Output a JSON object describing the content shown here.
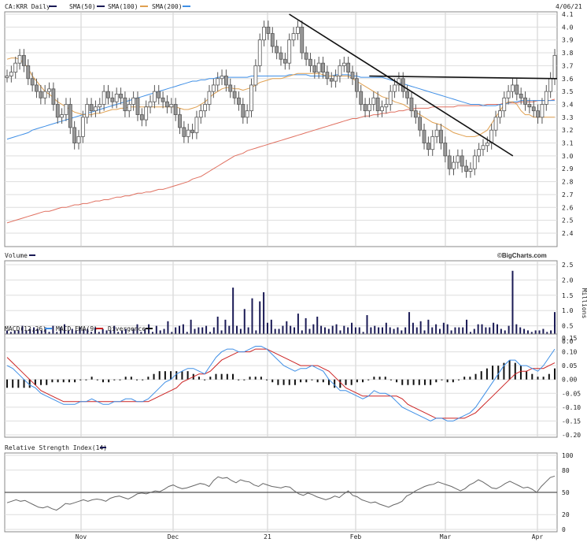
{
  "header": {
    "ticker_label": "CA:KRR Daily",
    "sma50_label": "SMA(50)",
    "sma100_label": "SMA(100)",
    "sma200_label": "SMA(200)",
    "date_label": "4/06/21"
  },
  "volume_panel": {
    "title": "Volume",
    "brand": "©BigCharts.com",
    "unit_label": "Millions"
  },
  "macd_panel": {
    "title_macd": "MACD(12,26)",
    "title_ema": "MACD EMA(9)",
    "title_div": "Divergence"
  },
  "rsi_panel": {
    "title": "Relative Strength Index(14)"
  },
  "colors": {
    "sma50": "#1a1a55",
    "sma100": "#e0a050",
    "sma200": "#3f8fe6",
    "sma200_long": "#e07060",
    "candle": "#999999",
    "macd": "#3f8fe6",
    "ema": "#cc2222",
    "volume": "#1a1a55"
  },
  "chart_data": [
    {
      "type": "candlestick",
      "ylim": [
        2.4,
        4.1
      ],
      "yticks": [
        "4.1",
        "4.0",
        "3.9",
        "3.8",
        "3.7",
        "3.6",
        "3.5",
        "3.4",
        "3.3",
        "3.2",
        "3.1",
        "3.0",
        "2.9",
        "2.8",
        "2.7",
        "2.6",
        "2.5",
        "2.4"
      ],
      "xticks": [
        "Nov",
        "Dec",
        "21",
        "Feb",
        "Mar",
        "Apr"
      ],
      "close": [
        3.62,
        3.65,
        3.72,
        3.78,
        3.7,
        3.6,
        3.55,
        3.5,
        3.45,
        3.5,
        3.52,
        3.4,
        3.3,
        3.32,
        3.4,
        3.22,
        3.1,
        3.15,
        3.3,
        3.4,
        3.35,
        3.38,
        3.4,
        3.5,
        3.45,
        3.42,
        3.48,
        3.45,
        3.35,
        3.4,
        3.45,
        3.32,
        3.28,
        3.38,
        3.42,
        3.5,
        3.45,
        3.42,
        3.38,
        3.4,
        3.32,
        3.22,
        3.15,
        3.2,
        3.18,
        3.3,
        3.35,
        3.4,
        3.5,
        3.55,
        3.6,
        3.62,
        3.55,
        3.5,
        3.45,
        3.4,
        3.3,
        3.35,
        3.55,
        3.7,
        3.9,
        4.0,
        3.95,
        3.85,
        3.8,
        3.75,
        3.72,
        3.9,
        3.95,
        4.0,
        3.8,
        3.75,
        3.7,
        3.65,
        3.72,
        3.65,
        3.6,
        3.58,
        3.62,
        3.7,
        3.72,
        3.65,
        3.6,
        3.5,
        3.4,
        3.35,
        3.4,
        3.45,
        3.35,
        3.38,
        3.4,
        3.5,
        3.55,
        3.6,
        3.5,
        3.45,
        3.35,
        3.3,
        3.2,
        3.1,
        3.05,
        3.15,
        3.2,
        3.1,
        3.0,
        2.9,
        2.95,
        3.0,
        2.92,
        2.88,
        2.9,
        3.0,
        3.05,
        3.08,
        3.1,
        3.2,
        3.3,
        3.35,
        3.45,
        3.5,
        3.55,
        3.48,
        3.45,
        3.4,
        3.38,
        3.35,
        3.3,
        3.4,
        3.5,
        3.6,
        3.78
      ],
      "sma50": [
        3.75,
        3.76,
        3.76,
        3.75,
        3.72,
        3.68,
        3.62,
        3.58,
        3.54,
        3.5,
        3.48,
        3.45,
        3.42,
        3.4,
        3.38,
        3.36,
        3.34,
        3.33,
        3.32,
        3.32,
        3.32,
        3.33,
        3.33,
        3.34,
        3.35,
        3.36,
        3.36,
        3.37,
        3.37,
        3.38,
        3.38,
        3.38,
        3.38,
        3.38,
        3.38,
        3.38,
        3.38,
        3.38,
        3.38,
        3.38,
        3.38,
        3.37,
        3.36,
        3.36,
        3.37,
        3.38,
        3.4,
        3.42,
        3.45,
        3.48,
        3.5,
        3.52,
        3.53,
        3.53,
        3.52,
        3.52,
        3.51,
        3.52,
        3.53,
        3.55,
        3.57,
        3.58,
        3.59,
        3.6,
        3.6,
        3.6,
        3.61,
        3.62,
        3.63,
        3.64,
        3.64,
        3.64,
        3.64,
        3.64,
        3.64,
        3.63,
        3.62,
        3.62,
        3.62,
        3.62,
        3.62,
        3.62,
        3.6,
        3.58,
        3.56,
        3.54,
        3.52,
        3.5,
        3.48,
        3.46,
        3.45,
        3.44,
        3.42,
        3.41,
        3.4,
        3.38,
        3.36,
        3.34,
        3.32,
        3.3,
        3.28,
        3.26,
        3.25,
        3.24,
        3.22,
        3.2,
        3.18,
        3.17,
        3.16,
        3.15,
        3.15,
        3.15,
        3.16,
        3.18,
        3.2,
        3.25,
        3.3,
        3.35,
        3.4,
        3.42,
        3.42,
        3.4,
        3.35,
        3.32,
        3.32,
        3.3,
        3.3,
        3.3,
        3.3,
        3.3,
        3.3
      ],
      "sma200_line": [
        3.13,
        3.14,
        3.15,
        3.16,
        3.17,
        3.18,
        3.2,
        3.21,
        3.22,
        3.23,
        3.24,
        3.25,
        3.26,
        3.27,
        3.28,
        3.29,
        3.3,
        3.31,
        3.32,
        3.33,
        3.34,
        3.35,
        3.36,
        3.37,
        3.38,
        3.39,
        3.4,
        3.41,
        3.42,
        3.43,
        3.44,
        3.45,
        3.46,
        3.47,
        3.48,
        3.49,
        3.5,
        3.51,
        3.52,
        3.53,
        3.54,
        3.55,
        3.56,
        3.57,
        3.58,
        3.58,
        3.59,
        3.59,
        3.6,
        3.6,
        3.61,
        3.61,
        3.61,
        3.61,
        3.61,
        3.61,
        3.61,
        3.61,
        3.62,
        3.62,
        3.62,
        3.62,
        3.62,
        3.62,
        3.62,
        3.62,
        3.62,
        3.63,
        3.63,
        3.63,
        3.63,
        3.63,
        3.62,
        3.62,
        3.62,
        3.62,
        3.62,
        3.62,
        3.63,
        3.63,
        3.63,
        3.63,
        3.62,
        3.62,
        3.61,
        3.61,
        3.61,
        3.61,
        3.61,
        3.61,
        3.6,
        3.59,
        3.58,
        3.57,
        3.56,
        3.55,
        3.54,
        3.53,
        3.52,
        3.51,
        3.5,
        3.49,
        3.48,
        3.47,
        3.46,
        3.45,
        3.44,
        3.43,
        3.42,
        3.41,
        3.4,
        3.4,
        3.4,
        3.39,
        3.39,
        3.39,
        3.39,
        3.4,
        3.4,
        3.41,
        3.42,
        3.42,
        3.43,
        3.43,
        3.43,
        3.43,
        3.43,
        3.43,
        3.43,
        3.43,
        3.43
      ],
      "sma_long_line": [
        2.48,
        2.49,
        2.5,
        2.51,
        2.52,
        2.53,
        2.54,
        2.55,
        2.56,
        2.57,
        2.57,
        2.58,
        2.59,
        2.6,
        2.6,
        2.61,
        2.62,
        2.62,
        2.63,
        2.63,
        2.64,
        2.65,
        2.65,
        2.66,
        2.66,
        2.67,
        2.68,
        2.68,
        2.69,
        2.69,
        2.7,
        2.71,
        2.71,
        2.72,
        2.72,
        2.73,
        2.74,
        2.74,
        2.75,
        2.76,
        2.77,
        2.78,
        2.79,
        2.8,
        2.82,
        2.83,
        2.84,
        2.86,
        2.88,
        2.9,
        2.92,
        2.94,
        2.96,
        2.98,
        3.0,
        3.01,
        3.02,
        3.04,
        3.05,
        3.06,
        3.07,
        3.08,
        3.09,
        3.1,
        3.11,
        3.12,
        3.13,
        3.14,
        3.15,
        3.16,
        3.17,
        3.18,
        3.19,
        3.2,
        3.21,
        3.22,
        3.23,
        3.24,
        3.25,
        3.26,
        3.27,
        3.28,
        3.29,
        3.29,
        3.3,
        3.31,
        3.31,
        3.32,
        3.32,
        3.33,
        3.33,
        3.34,
        3.34,
        3.35,
        3.35,
        3.36,
        3.36,
        3.37,
        3.37,
        3.37,
        3.37,
        3.38,
        3.38,
        3.38,
        3.38,
        3.38,
        3.38,
        3.39,
        3.39,
        3.39,
        3.39,
        3.39,
        3.39,
        3.39,
        3.4,
        3.4,
        3.4,
        3.4,
        3.41,
        3.41,
        3.41,
        3.41,
        3.42,
        3.42,
        3.42,
        3.42,
        3.43,
        3.43,
        3.43,
        3.43,
        3.44
      ],
      "trendlines": [
        {
          "from": [
            0.515,
            4.1
          ],
          "to": [
            0.92,
            3.0
          ]
        },
        {
          "from": [
            0.66,
            3.62
          ],
          "to": [
            1.0,
            3.6
          ]
        }
      ]
    },
    {
      "type": "bar",
      "ylim": [
        0,
        2.5
      ],
      "yticks": [
        "2.5",
        "2.0",
        "1.5",
        "1.0",
        "0.5",
        "0.0"
      ],
      "values": [
        0.35,
        0.3,
        0.35,
        0.35,
        0.5,
        0.35,
        0.4,
        0.45,
        0.4,
        0.35,
        0.45,
        0.3,
        0.5,
        0.3,
        0.45,
        0.55,
        0.35,
        0.4,
        0.35,
        0.45,
        0.4,
        0.4,
        0.3,
        0.45,
        0.3,
        0.4,
        0.35,
        0.35,
        0.5,
        0.3,
        0.35,
        0.4,
        0.25,
        0.4,
        0.55,
        0.3,
        0.4,
        0.55,
        0.3,
        0.5,
        0.35,
        0.4,
        0.65,
        0.3,
        0.45,
        0.5,
        0.55,
        0.3,
        0.7,
        0.4,
        0.45,
        0.45,
        0.5,
        0.3,
        0.45,
        0.8,
        0.35,
        0.7,
        0.5,
        1.75,
        0.5,
        0.4,
        1.05,
        0.45,
        1.4,
        0.35,
        1.3,
        1.6,
        0.6,
        0.7,
        0.4,
        0.4,
        0.5,
        0.65,
        0.5,
        0.45,
        0.9,
        0.35,
        0.75,
        0.4,
        0.55,
        0.8,
        0.5,
        0.45,
        0.4,
        0.5,
        0.55,
        0.35,
        0.5,
        0.45,
        0.6,
        0.45,
        0.45,
        0.3,
        0.85,
        0.45,
        0.5,
        0.45,
        0.45,
        0.6,
        0.45,
        0.4,
        0.45,
        0.35,
        0.45,
        0.95,
        0.6,
        0.45,
        0.65,
        0.35,
        0.7,
        0.45,
        0.55,
        0.4,
        0.6,
        0.55,
        0.35,
        0.45,
        0.45,
        0.45,
        0.7,
        0.3,
        0.4,
        0.55,
        0.55,
        0.45,
        0.45,
        0.6,
        0.55,
        0.4,
        0.35,
        0.5,
        2.3,
        0.55,
        0.45,
        0.4,
        0.35,
        0.3,
        0.35,
        0.35,
        0.4,
        0.3,
        0.35,
        0.95
      ]
    },
    {
      "type": "line",
      "ylim": [
        -0.2,
        0.15
      ],
      "yticks": [
        "0.15",
        "0.10",
        "0.05",
        "0.00",
        "-0.05",
        "-0.10",
        "-0.15",
        "-0.20"
      ],
      "macd": [
        0.05,
        0.04,
        0.02,
        0.0,
        -0.02,
        -0.03,
        -0.05,
        -0.06,
        -0.07,
        -0.08,
        -0.09,
        -0.09,
        -0.09,
        -0.08,
        -0.08,
        -0.07,
        -0.08,
        -0.09,
        -0.09,
        -0.08,
        -0.08,
        -0.07,
        -0.07,
        -0.08,
        -0.08,
        -0.07,
        -0.05,
        -0.03,
        -0.01,
        0.0,
        0.02,
        0.03,
        0.04,
        0.04,
        0.03,
        0.02,
        0.05,
        0.08,
        0.1,
        0.11,
        0.11,
        0.1,
        0.1,
        0.11,
        0.12,
        0.12,
        0.11,
        0.09,
        0.07,
        0.05,
        0.04,
        0.03,
        0.04,
        0.04,
        0.05,
        0.04,
        0.03,
        0.0,
        -0.02,
        -0.04,
        -0.04,
        -0.05,
        -0.06,
        -0.07,
        -0.06,
        -0.04,
        -0.05,
        -0.05,
        -0.06,
        -0.08,
        -0.1,
        -0.11,
        -0.12,
        -0.13,
        -0.14,
        -0.15,
        -0.14,
        -0.14,
        -0.15,
        -0.15,
        -0.14,
        -0.13,
        -0.12,
        -0.1,
        -0.07,
        -0.04,
        -0.01,
        0.02,
        0.05,
        0.07,
        0.07,
        0.05,
        0.05,
        0.04,
        0.03,
        0.05,
        0.08,
        0.11
      ],
      "ema": [
        0.08,
        0.06,
        0.04,
        0.02,
        0.0,
        -0.02,
        -0.04,
        -0.05,
        -0.06,
        -0.07,
        -0.08,
        -0.08,
        -0.08,
        -0.08,
        -0.08,
        -0.08,
        -0.08,
        -0.08,
        -0.08,
        -0.08,
        -0.08,
        -0.08,
        -0.08,
        -0.08,
        -0.08,
        -0.08,
        -0.07,
        -0.06,
        -0.05,
        -0.04,
        -0.03,
        -0.01,
        0.0,
        0.01,
        0.02,
        0.02,
        0.03,
        0.05,
        0.07,
        0.08,
        0.09,
        0.1,
        0.1,
        0.1,
        0.11,
        0.11,
        0.11,
        0.1,
        0.09,
        0.08,
        0.07,
        0.06,
        0.05,
        0.05,
        0.05,
        0.05,
        0.04,
        0.03,
        0.01,
        -0.01,
        -0.03,
        -0.04,
        -0.05,
        -0.06,
        -0.06,
        -0.06,
        -0.06,
        -0.06,
        -0.06,
        -0.06,
        -0.07,
        -0.09,
        -0.1,
        -0.11,
        -0.12,
        -0.13,
        -0.14,
        -0.14,
        -0.14,
        -0.14,
        -0.14,
        -0.14,
        -0.13,
        -0.12,
        -0.1,
        -0.08,
        -0.06,
        -0.04,
        -0.02,
        0.0,
        0.02,
        0.03,
        0.03,
        0.04,
        0.04,
        0.04,
        0.05,
        0.06
      ],
      "divergence": [
        -0.03,
        -0.03,
        -0.03,
        -0.03,
        -0.03,
        -0.02,
        -0.02,
        -0.02,
        -0.01,
        -0.01,
        -0.01,
        -0.01,
        -0.01,
        0.0,
        0.0,
        0.01,
        0.0,
        -0.01,
        -0.01,
        0.0,
        0.0,
        0.01,
        0.01,
        0.0,
        0.0,
        0.01,
        0.02,
        0.03,
        0.03,
        0.03,
        0.03,
        0.03,
        0.03,
        0.02,
        0.01,
        0.0,
        0.01,
        0.02,
        0.02,
        0.02,
        0.02,
        0.0,
        0.0,
        0.01,
        0.01,
        0.01,
        0.0,
        -0.01,
        -0.02,
        -0.02,
        -0.02,
        -0.02,
        -0.01,
        -0.01,
        0.0,
        -0.01,
        -0.01,
        -0.02,
        -0.03,
        -0.03,
        -0.02,
        -0.02,
        -0.01,
        -0.01,
        0.0,
        0.01,
        0.01,
        0.01,
        0.0,
        -0.01,
        -0.02,
        -0.02,
        -0.02,
        -0.02,
        -0.02,
        -0.02,
        -0.01,
        0.0,
        -0.01,
        -0.01,
        0.0,
        0.01,
        0.01,
        0.02,
        0.03,
        0.04,
        0.05,
        0.05,
        0.06,
        0.07,
        0.06,
        0.05,
        0.03,
        0.02,
        0.01,
        0.01,
        0.02,
        0.04
      ]
    },
    {
      "type": "line",
      "ylim": [
        0,
        100
      ],
      "yticks": [
        "100",
        "80",
        "50",
        "20",
        "0"
      ],
      "rsi": [
        36,
        38,
        40,
        38,
        39,
        36,
        33,
        30,
        29,
        31,
        28,
        26,
        30,
        35,
        34,
        36,
        38,
        40,
        38,
        40,
        41,
        40,
        38,
        42,
        44,
        45,
        43,
        41,
        44,
        48,
        49,
        48,
        50,
        52,
        51,
        54,
        58,
        60,
        57,
        55,
        56,
        58,
        60,
        62,
        61,
        58,
        66,
        71,
        69,
        70,
        66,
        63,
        67,
        65,
        64,
        60,
        58,
        62,
        60,
        58,
        57,
        56,
        58,
        57,
        52,
        48,
        46,
        49,
        47,
        44,
        42,
        40,
        42,
        45,
        43,
        48,
        52,
        46,
        44,
        40,
        38,
        36,
        37,
        34,
        32,
        30,
        33,
        35,
        38,
        45,
        48,
        52,
        55,
        58,
        60,
        61,
        64,
        62,
        60,
        58,
        55,
        52,
        55,
        60,
        63,
        67,
        64,
        60,
        56,
        55,
        58,
        62,
        65,
        62,
        59,
        56,
        57,
        54,
        50,
        58,
        64,
        70,
        72
      ]
    }
  ]
}
